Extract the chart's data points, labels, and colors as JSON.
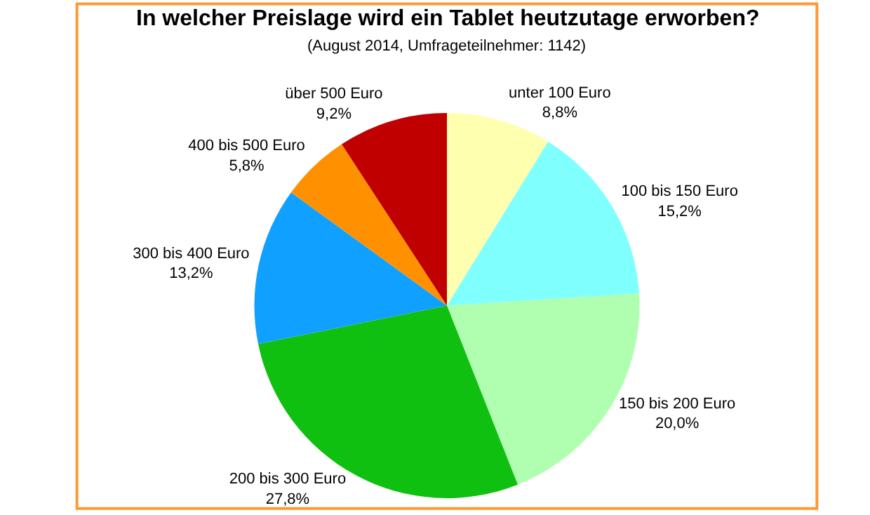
{
  "chart_data": {
    "type": "pie",
    "title": "In welcher Preislage wird ein Tablet heutzutage erworben?",
    "subtitle": "(August 2014, Umfrageteilnehmer: 1142)",
    "categories": [
      "unter 100 Euro",
      "100 bis 150 Euro",
      "150 bis 200 Euro",
      "200 bis 300 Euro",
      "300 bis 400 Euro",
      "400 bis 500 Euro",
      "über 500 Euro"
    ],
    "values": [
      8.8,
      15.2,
      20.0,
      27.8,
      13.2,
      5.8,
      9.2
    ],
    "value_labels": [
      "8,8%",
      "15,2%",
      "20,0%",
      "27,8%",
      "13,2%",
      "5,8%",
      "9,2%"
    ],
    "colors": [
      "#ffffb0",
      "#80ffff",
      "#b0ffb0",
      "#10c010",
      "#10a0ff",
      "#ff9000",
      "#c00000"
    ],
    "legend": false
  }
}
